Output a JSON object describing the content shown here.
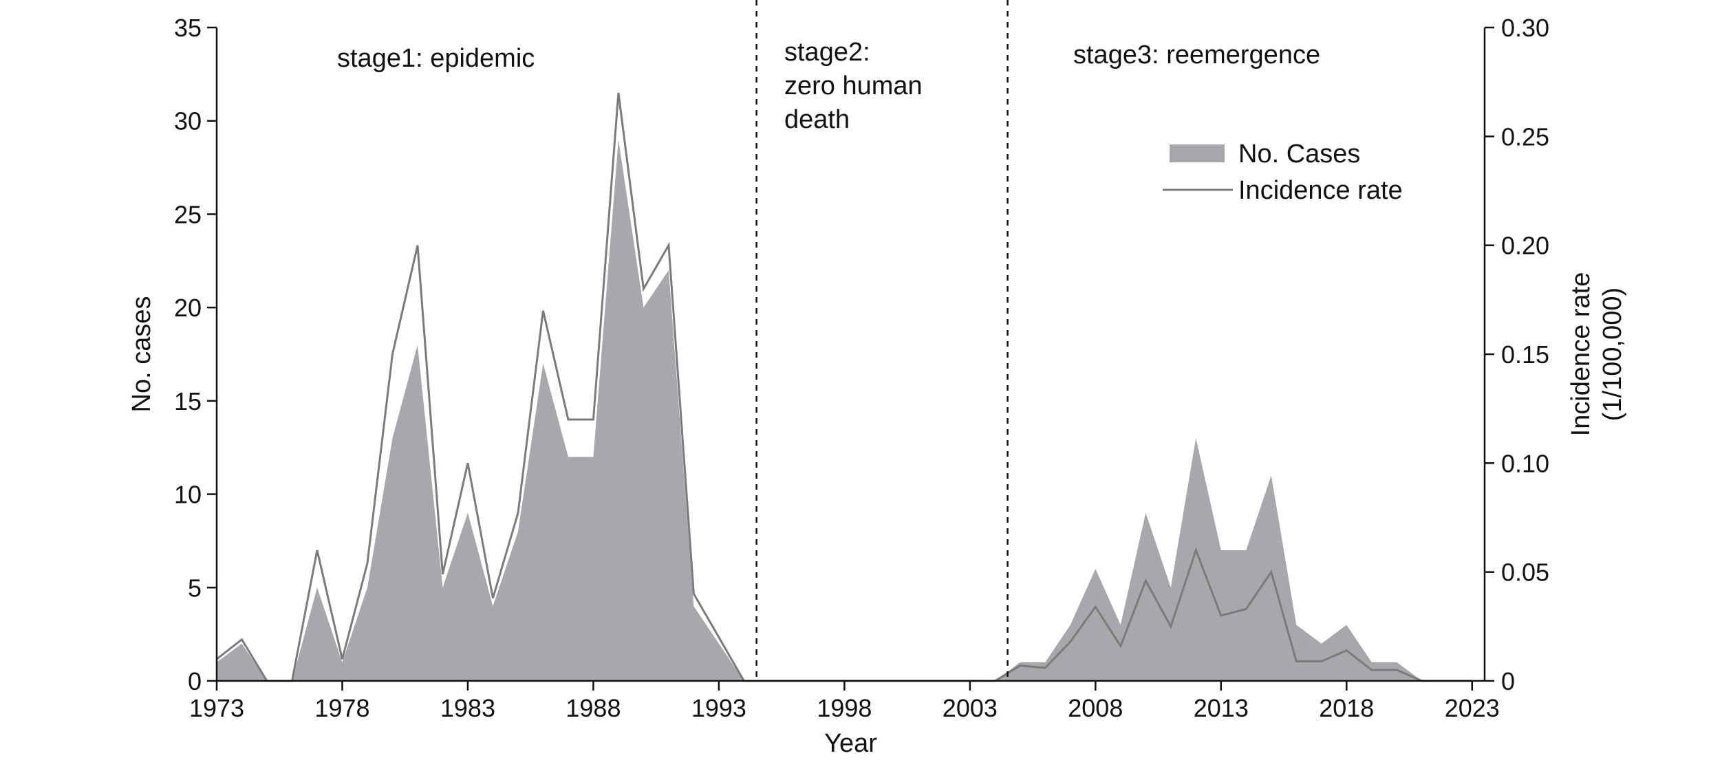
{
  "chart_data": {
    "type": "area",
    "title": "",
    "xlabel": "Year",
    "ylabel_left": "No. cases",
    "ylabel_right_lines": [
      "Incidence rate",
      "(1/100,000)"
    ],
    "x_ticks": [
      "1973",
      "1978",
      "1983",
      "1988",
      "1993",
      "1998",
      "2003",
      "2008",
      "2013",
      "2018",
      "2023"
    ],
    "y_left_ticks": [
      "0",
      "5",
      "10",
      "15",
      "20",
      "25",
      "30",
      "35"
    ],
    "y_right_ticks": [
      "0",
      "0.05",
      "0.10",
      "0.15",
      "0.20",
      "0.25",
      "0.30"
    ],
    "xlim": [
      1973,
      2023.5
    ],
    "ylim_left": [
      0,
      35
    ],
    "ylim_right": [
      0,
      0.3
    ],
    "x": [
      1973,
      1974,
      1975,
      1976,
      1977,
      1978,
      1979,
      1980,
      1981,
      1982,
      1983,
      1984,
      1985,
      1986,
      1987,
      1988,
      1989,
      1990,
      1991,
      1992,
      1993,
      1994,
      1995,
      1996,
      1997,
      1998,
      1999,
      2000,
      2001,
      2002,
      2003,
      2004,
      2005,
      2006,
      2007,
      2008,
      2009,
      2010,
      2011,
      2012,
      2013,
      2014,
      2015,
      2016,
      2017,
      2018,
      2019,
      2020,
      2021,
      2022,
      2023
    ],
    "series": [
      {
        "name": "No. Cases",
        "axis": "left",
        "style": "area",
        "color": "#a7a8ac",
        "values": [
          1,
          2,
          0,
          0,
          5,
          1,
          5,
          13,
          18,
          5,
          9,
          4,
          8,
          17,
          12,
          12,
          29,
          20,
          22,
          4,
          2,
          0,
          0,
          0,
          0,
          0,
          0,
          0,
          0,
          0,
          0,
          0,
          1,
          1,
          3,
          6,
          3,
          9,
          5,
          13,
          7,
          7,
          11,
          3,
          2,
          3,
          1,
          1,
          0,
          0,
          0
        ]
      },
      {
        "name": "Incidence rate",
        "axis": "right",
        "style": "line",
        "color": "#7b7b7b",
        "values": [
          0.01,
          0.019,
          0,
          0,
          0.06,
          0.01,
          0.054,
          0.15,
          0.2,
          0.049,
          0.1,
          0.038,
          0.077,
          0.17,
          0.12,
          0.12,
          0.27,
          0.18,
          0.2,
          0.04,
          0.02,
          0,
          0,
          0,
          0,
          0,
          0,
          0,
          0,
          0,
          0,
          0,
          0.007,
          0.006,
          0.018,
          0.034,
          0.016,
          0.046,
          0.025,
          0.06,
          0.03,
          0.033,
          0.05,
          0.009,
          0.009,
          0.014,
          0.005,
          0.005,
          0,
          0,
          0
        ]
      }
    ],
    "dividers": [
      1994.5,
      2004.5
    ],
    "stage_labels": [
      {
        "lines": [
          "stage1: epidemic"
        ]
      },
      {
        "lines": [
          "stage2:",
          "zero human",
          "death"
        ]
      },
      {
        "lines": [
          "stage3: reemergence"
        ]
      }
    ],
    "legend": {
      "placement": "top-right",
      "items": [
        {
          "label": "No. Cases",
          "kind": "area"
        },
        {
          "label": "Incidence rate",
          "kind": "line"
        }
      ]
    },
    "grid": false
  }
}
